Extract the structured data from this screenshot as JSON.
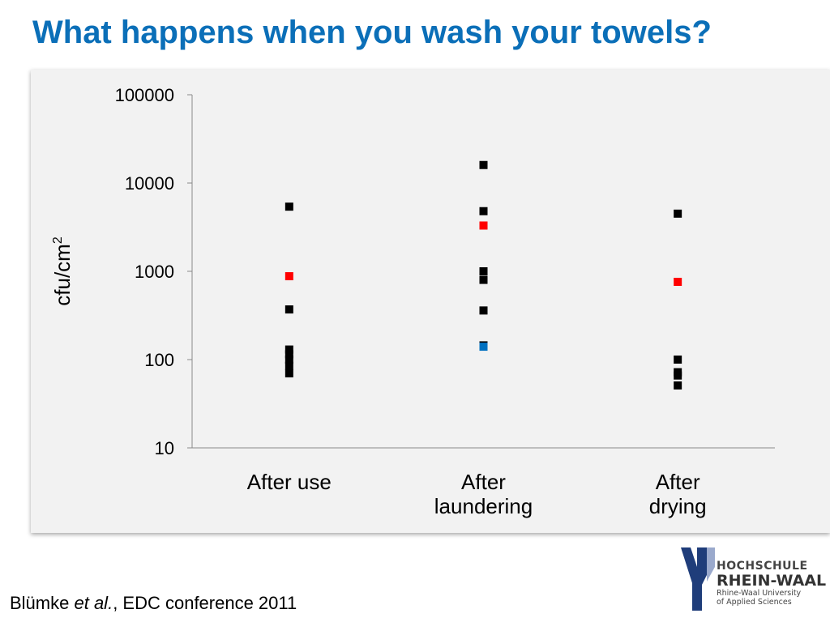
{
  "slide": {
    "title": "What happens when you wash your towels?",
    "citation": {
      "author": "Blümke ",
      "etal": "et al.",
      "rest": ", EDC conference 2011"
    },
    "logo": {
      "line1": "HOCHSCHULE",
      "line2": "RHEIN-WAAL",
      "line3": "Rhine-Waal University",
      "line4": "of Applied Sciences"
    }
  },
  "chart_data": {
    "type": "scatter",
    "title": "",
    "xlabel": "",
    "ylabel_base": "cfu/cm",
    "ylabel_sup": "2",
    "y_scale": "log",
    "ylim": [
      10,
      100000
    ],
    "y_ticks": [
      "10",
      "100",
      "1000",
      "10000",
      "100000"
    ],
    "categories": [
      [
        "After use"
      ],
      [
        "After",
        "laundering"
      ],
      [
        "After",
        "drying"
      ]
    ],
    "grid": false,
    "legend": "none",
    "series": [
      {
        "color": "#000000",
        "points": [
          {
            "category": 0,
            "y": 5400
          },
          {
            "category": 0,
            "y": 370
          },
          {
            "category": 0,
            "y": 130
          },
          {
            "category": 0,
            "y": 115
          },
          {
            "category": 0,
            "y": 100
          },
          {
            "category": 0,
            "y": 85
          },
          {
            "category": 0,
            "y": 70
          },
          {
            "category": 1,
            "y": 16000
          },
          {
            "category": 1,
            "y": 4800
          },
          {
            "category": 1,
            "y": 1000
          },
          {
            "category": 1,
            "y": 800
          },
          {
            "category": 1,
            "y": 360
          },
          {
            "category": 1,
            "y": 145
          },
          {
            "category": 2,
            "y": 4500
          },
          {
            "category": 2,
            "y": 100
          },
          {
            "category": 2,
            "y": 72
          },
          {
            "category": 2,
            "y": 66
          },
          {
            "category": 2,
            "y": 51
          }
        ]
      },
      {
        "color": "#ff0000",
        "points": [
          {
            "category": 0,
            "y": 880
          },
          {
            "category": 1,
            "y": 3300
          },
          {
            "category": 2,
            "y": 760
          }
        ]
      },
      {
        "color": "#0070c0",
        "points": [
          {
            "category": 1,
            "y": 140
          }
        ]
      }
    ],
    "colors": {
      "title": "#0b6fb8",
      "axis": "#898989",
      "panel": "#f2f2f2",
      "logo_dark": "#1f3d7a",
      "logo_light": "#9aa9cc"
    }
  }
}
